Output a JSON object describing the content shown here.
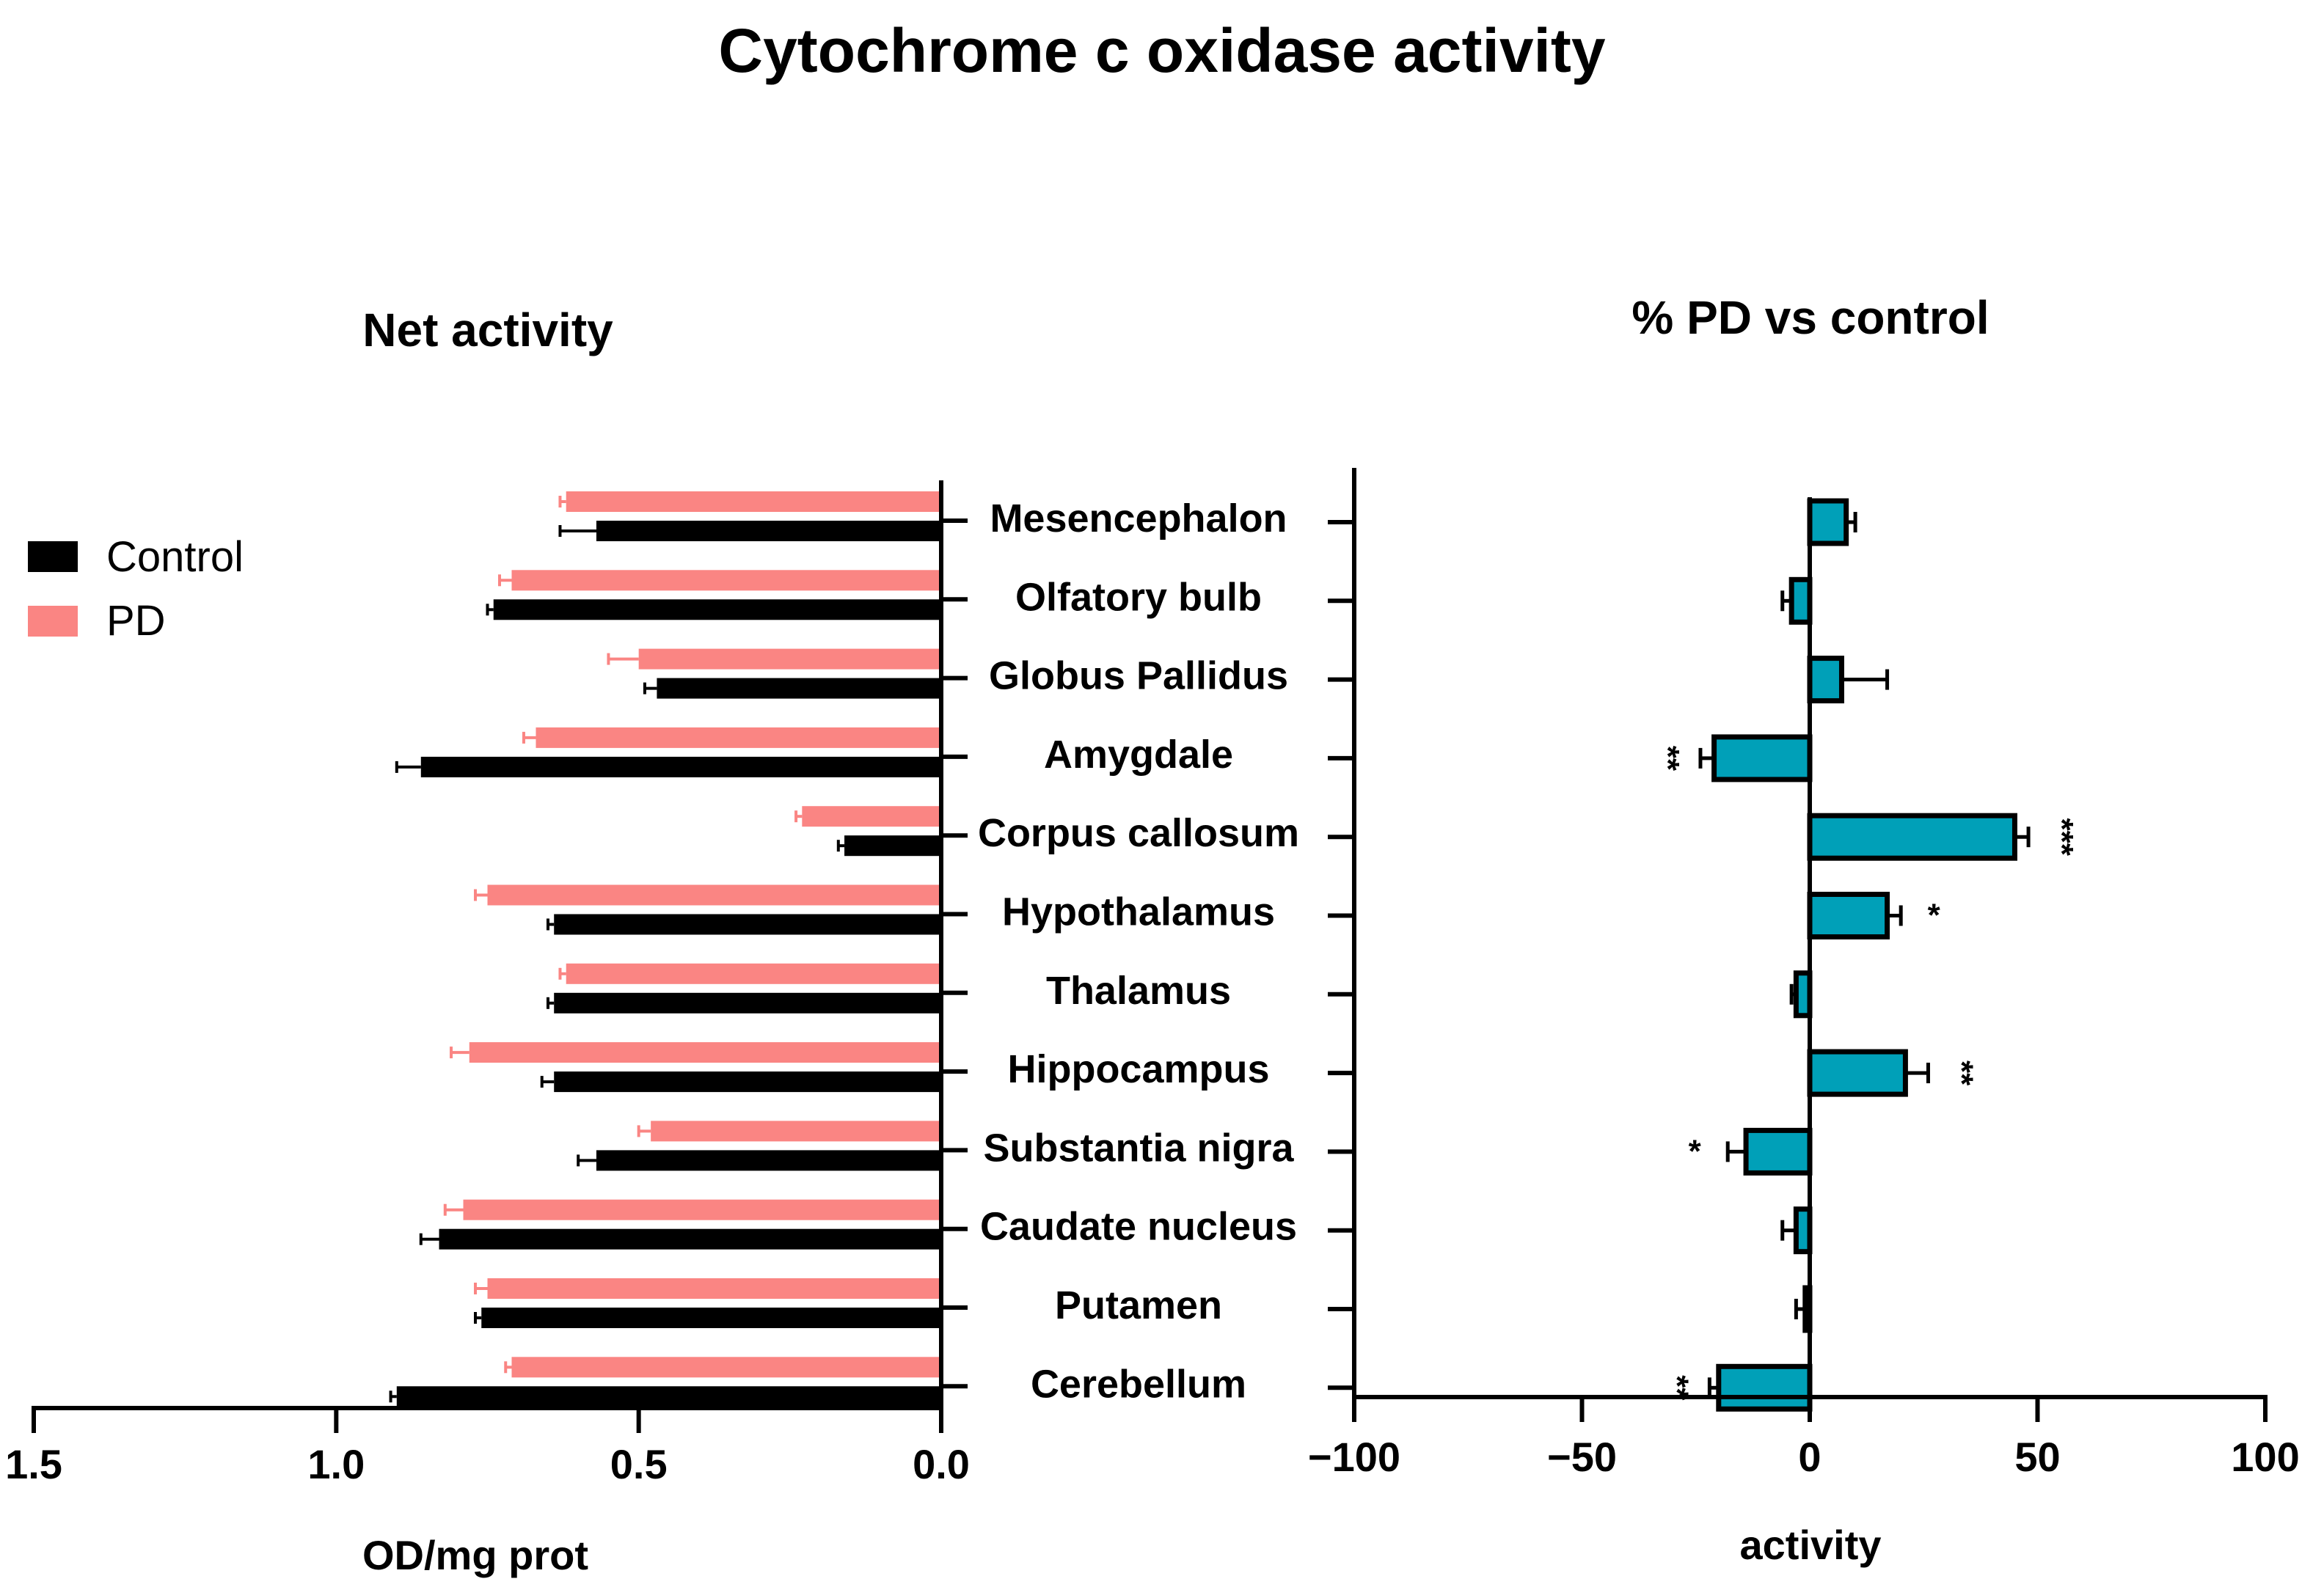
{
  "figure_title": "Cytochrome c oxidase activity",
  "chart_data": [
    {
      "type": "bar",
      "orientation": "horizontal",
      "title": "Net activity",
      "xlabel": "OD/mg prot",
      "ylabel": "",
      "x_axis_reversed": true,
      "xlim": [
        0,
        1.5
      ],
      "xticks": [
        "1.5",
        "1.0",
        "0.5",
        "0.0"
      ],
      "xtick_values": [
        1.5,
        1.0,
        0.5,
        0.0
      ],
      "grid": false,
      "legend_position": "left",
      "categories": [
        "Mesencephalon",
        "Olfatory bulb",
        "Globus Pallidus",
        "Amygdale",
        "Corpus callosum",
        "Hypothalamus",
        "Thalamus",
        "Hippocampus",
        "Substantia nigra",
        "Caudate nucleus",
        "Putamen",
        "Cerebellum"
      ],
      "series": [
        {
          "name": "PD",
          "color": "#fa8583",
          "values": [
            0.62,
            0.71,
            0.5,
            0.67,
            0.23,
            0.75,
            0.62,
            0.78,
            0.48,
            0.79,
            0.75,
            0.71
          ],
          "errors": [
            0.01,
            0.02,
            0.05,
            0.02,
            0.01,
            0.02,
            0.01,
            0.03,
            0.02,
            0.03,
            0.02,
            0.01
          ]
        },
        {
          "name": "Control",
          "color": "#000000",
          "values": [
            0.57,
            0.74,
            0.47,
            0.86,
            0.16,
            0.64,
            0.64,
            0.64,
            0.57,
            0.83,
            0.76,
            0.9
          ],
          "errors": [
            0.06,
            0.01,
            0.02,
            0.04,
            0.01,
            0.01,
            0.01,
            0.02,
            0.03,
            0.03,
            0.01,
            0.01
          ]
        }
      ]
    },
    {
      "type": "bar",
      "orientation": "horizontal",
      "title": "% PD vs control",
      "xlabel": "activity",
      "ylabel": "",
      "xlim": [
        -100,
        100
      ],
      "xticks": [
        "−100",
        "−50",
        "0",
        "50",
        "100"
      ],
      "xtick_values": [
        -100,
        -50,
        0,
        50,
        100
      ],
      "grid": false,
      "color": "#00a0b8",
      "categories": [
        "Mesencephalon",
        "Olfatory bulb",
        "Globus Pallidus",
        "Amygdale",
        "Corpus callosum",
        "Hypothalamus",
        "Thalamus",
        "Hippocampus",
        "Substantia nigra",
        "Caudate nucleus",
        "Putamen",
        "Cerebellum"
      ],
      "values": [
        8,
        -4,
        7,
        -21,
        45,
        17,
        -3,
        21,
        -14,
        -3,
        -1,
        -20
      ],
      "errors": [
        2,
        2,
        10,
        3,
        3,
        3,
        1,
        5,
        4,
        3,
        2,
        2
      ],
      "significance": [
        "",
        "",
        "",
        "**",
        "***",
        "*",
        "",
        "**",
        "*",
        "",
        "",
        "**"
      ]
    }
  ]
}
